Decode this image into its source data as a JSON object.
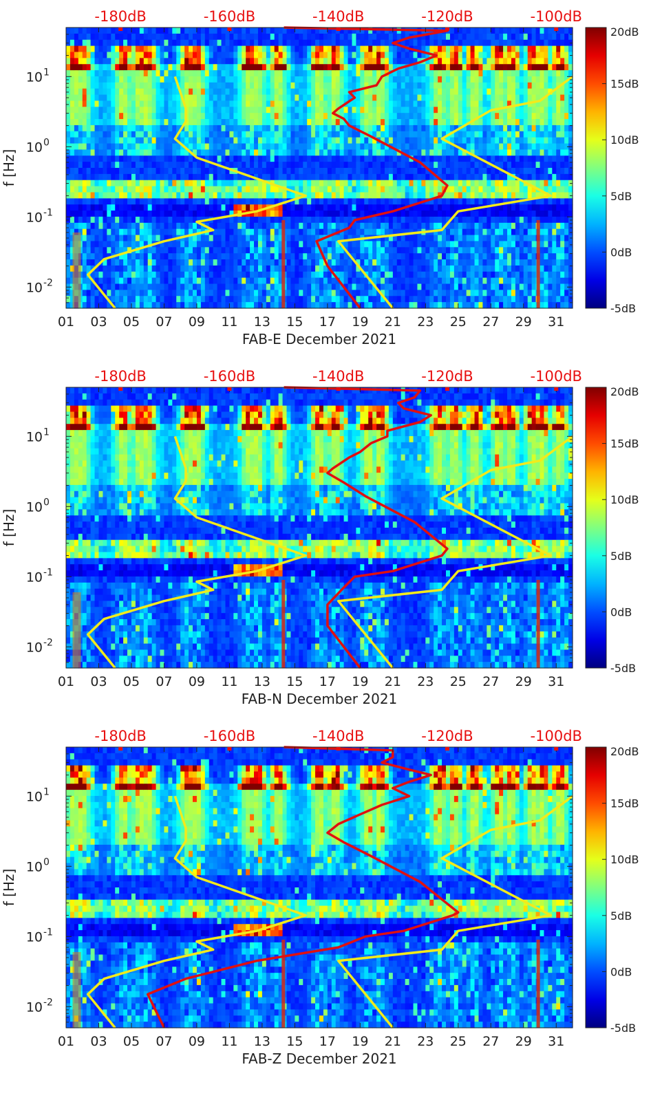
{
  "chart_data": [
    {
      "type": "heatmap",
      "station": "FAB-E",
      "xlabel": "FAB-E December 2021",
      "ylabel": "f [Hz]",
      "x_ticks": [
        "01",
        "03",
        "05",
        "07",
        "09",
        "11",
        "13",
        "15",
        "17",
        "19",
        "21",
        "23",
        "25",
        "27",
        "29",
        "31"
      ],
      "x_range_days": [
        1,
        32
      ],
      "y_scale": "log",
      "y_range_hz": [
        0.005,
        50
      ],
      "y_ticks": [
        {
          "value": 0.01,
          "base": "10",
          "exp": "-2"
        },
        {
          "value": 0.1,
          "base": "10",
          "exp": "-1"
        },
        {
          "value": 1,
          "base": "10",
          "exp": "0"
        },
        {
          "value": 10,
          "base": "10",
          "exp": "1"
        }
      ],
      "top_axis_labels": [
        "-180dB",
        "-160dB",
        "-140dB",
        "-120dB",
        "-100dB"
      ],
      "top_axis_db": [
        -180,
        -160,
        -140,
        -120,
        -100
      ],
      "top_axis_range_db": [
        -190,
        -97
      ],
      "colorbar": {
        "labels": [
          "20dB",
          "15dB",
          "10dB",
          "5dB",
          "0dB",
          "-5dB"
        ],
        "values": [
          20,
          15,
          10,
          5,
          0,
          -5
        ],
        "range": [
          -5,
          20
        ],
        "colormap": "jet"
      },
      "noise_model_curves": {
        "color": "#f2ea1c",
        "low_model": [
          [
            -181,
            0.005
          ],
          [
            -186,
            0.015
          ],
          [
            -183,
            0.025
          ],
          [
            -172,
            0.045
          ],
          [
            -163,
            0.065
          ],
          [
            -166,
            0.085
          ],
          [
            -155,
            0.12
          ],
          [
            -146,
            0.2
          ],
          [
            -166,
            0.7
          ],
          [
            -170,
            1.3
          ],
          [
            -168,
            2.3
          ],
          [
            -168,
            3.5
          ],
          [
            -170,
            10
          ]
        ],
        "high_model": [
          [
            -130,
            0.005
          ],
          [
            -140,
            0.045
          ],
          [
            -121,
            0.065
          ],
          [
            -118,
            0.12
          ],
          [
            -101,
            0.2
          ],
          [
            -121,
            1.3
          ],
          [
            -112,
            3.3
          ],
          [
            -103,
            4.5
          ],
          [
            -97,
            10
          ]
        ]
      },
      "spectrum_curve": {
        "color": "#e01010",
        "points": [
          [
            -136,
            0.005
          ],
          [
            -142,
            0.02
          ],
          [
            -144,
            0.045
          ],
          [
            -138,
            0.07
          ],
          [
            -137,
            0.09
          ],
          [
            -130,
            0.12
          ],
          [
            -121,
            0.2
          ],
          [
            -120,
            0.28
          ],
          [
            -125,
            0.6
          ],
          [
            -134,
            1.4
          ],
          [
            -138,
            2.0
          ],
          [
            -139,
            2.5
          ],
          [
            -141,
            3.0
          ],
          [
            -140,
            3.5
          ],
          [
            -137,
            5.0
          ],
          [
            -138,
            6.0
          ],
          [
            -133,
            7.5
          ],
          [
            -132,
            10.0
          ],
          [
            -129,
            13.0
          ],
          [
            -125,
            16.0
          ],
          [
            -122,
            20.0
          ],
          [
            -127,
            25.0
          ],
          [
            -130,
            30.0
          ],
          [
            -127,
            36.0
          ],
          [
            -120,
            45.0
          ],
          [
            -150,
            50.0
          ]
        ]
      }
    },
    {
      "type": "heatmap",
      "station": "FAB-N",
      "xlabel": "FAB-N December 2021",
      "ylabel": "f [Hz]",
      "x_ticks": [
        "01",
        "03",
        "05",
        "07",
        "09",
        "11",
        "13",
        "15",
        "17",
        "19",
        "21",
        "23",
        "25",
        "27",
        "29",
        "31"
      ],
      "x_range_days": [
        1,
        32
      ],
      "y_scale": "log",
      "y_range_hz": [
        0.005,
        50
      ],
      "y_ticks": [
        {
          "value": 0.01,
          "base": "10",
          "exp": "-2"
        },
        {
          "value": 0.1,
          "base": "10",
          "exp": "-1"
        },
        {
          "value": 1,
          "base": "10",
          "exp": "0"
        },
        {
          "value": 10,
          "base": "10",
          "exp": "1"
        }
      ],
      "top_axis_labels": [
        "-180dB",
        "-160dB",
        "-140dB",
        "-120dB",
        "-100dB"
      ],
      "top_axis_db": [
        -180,
        -160,
        -140,
        -120,
        -100
      ],
      "top_axis_range_db": [
        -190,
        -97
      ],
      "colorbar": {
        "labels": [
          "20dB",
          "15dB",
          "10dB",
          "5dB",
          "0dB",
          "-5dB"
        ],
        "values": [
          20,
          15,
          10,
          5,
          0,
          -5
        ],
        "range": [
          -5,
          20
        ],
        "colormap": "jet"
      },
      "noise_model_curves": {
        "color": "#f2ea1c",
        "low_model": [
          [
            -181,
            0.005
          ],
          [
            -186,
            0.015
          ],
          [
            -183,
            0.025
          ],
          [
            -172,
            0.045
          ],
          [
            -163,
            0.065
          ],
          [
            -166,
            0.085
          ],
          [
            -155,
            0.12
          ],
          [
            -146,
            0.2
          ],
          [
            -166,
            0.7
          ],
          [
            -170,
            1.3
          ],
          [
            -168,
            2.3
          ],
          [
            -168,
            3.5
          ],
          [
            -170,
            10
          ]
        ],
        "high_model": [
          [
            -130,
            0.005
          ],
          [
            -140,
            0.045
          ],
          [
            -121,
            0.065
          ],
          [
            -118,
            0.12
          ],
          [
            -101,
            0.2
          ],
          [
            -121,
            1.3
          ],
          [
            -112,
            3.3
          ],
          [
            -103,
            4.5
          ],
          [
            -97,
            10
          ]
        ]
      },
      "spectrum_curve": {
        "color": "#e01010",
        "points": [
          [
            -136,
            0.005
          ],
          [
            -142,
            0.02
          ],
          [
            -142,
            0.04
          ],
          [
            -139,
            0.07
          ],
          [
            -137,
            0.1
          ],
          [
            -130,
            0.12
          ],
          [
            -121,
            0.2
          ],
          [
            -120,
            0.25
          ],
          [
            -126,
            0.6
          ],
          [
            -135,
            1.4
          ],
          [
            -139,
            2.2
          ],
          [
            -142,
            3.0
          ],
          [
            -141,
            3.5
          ],
          [
            -138,
            5.0
          ],
          [
            -136,
            6.0
          ],
          [
            -134,
            8.0
          ],
          [
            -131,
            10.0
          ],
          [
            -131,
            12.0
          ],
          [
            -125,
            16.0
          ],
          [
            -123,
            20.0
          ],
          [
            -128,
            25.0
          ],
          [
            -129,
            30.0
          ],
          [
            -126,
            36.0
          ],
          [
            -125,
            45.0
          ],
          [
            -150,
            50.0
          ]
        ]
      }
    },
    {
      "type": "heatmap",
      "station": "FAB-Z",
      "xlabel": "FAB-Z December 2021",
      "ylabel": "f [Hz]",
      "x_ticks": [
        "01",
        "03",
        "05",
        "07",
        "09",
        "11",
        "13",
        "15",
        "17",
        "19",
        "21",
        "23",
        "25",
        "27",
        "29",
        "31"
      ],
      "x_range_days": [
        1,
        32
      ],
      "y_scale": "log",
      "y_range_hz": [
        0.005,
        50
      ],
      "y_ticks": [
        {
          "value": 0.01,
          "base": "10",
          "exp": "-2"
        },
        {
          "value": 0.1,
          "base": "10",
          "exp": "-1"
        },
        {
          "value": 1,
          "base": "10",
          "exp": "0"
        },
        {
          "value": 10,
          "base": "10",
          "exp": "1"
        }
      ],
      "top_axis_labels": [
        "-180dB",
        "-160dB",
        "-140dB",
        "-120dB",
        "-100dB"
      ],
      "top_axis_db": [
        -180,
        -160,
        -140,
        -120,
        -100
      ],
      "top_axis_range_db": [
        -190,
        -97
      ],
      "colorbar": {
        "labels": [
          "20dB",
          "15dB",
          "10dB",
          "5dB",
          "0dB",
          "-5dB"
        ],
        "values": [
          20,
          15,
          10,
          5,
          0,
          -5
        ],
        "range": [
          -5,
          20
        ],
        "colormap": "jet"
      },
      "noise_model_curves": {
        "color": "#f2ea1c",
        "low_model": [
          [
            -181,
            0.005
          ],
          [
            -186,
            0.015
          ],
          [
            -183,
            0.025
          ],
          [
            -172,
            0.045
          ],
          [
            -163,
            0.065
          ],
          [
            -166,
            0.085
          ],
          [
            -155,
            0.12
          ],
          [
            -146,
            0.2
          ],
          [
            -166,
            0.7
          ],
          [
            -170,
            1.3
          ],
          [
            -168,
            2.3
          ],
          [
            -168,
            3.5
          ],
          [
            -170,
            10
          ]
        ],
        "high_model": [
          [
            -130,
            0.005
          ],
          [
            -140,
            0.045
          ],
          [
            -121,
            0.065
          ],
          [
            -118,
            0.12
          ],
          [
            -101,
            0.2
          ],
          [
            -121,
            1.3
          ],
          [
            -112,
            3.3
          ],
          [
            -103,
            4.5
          ],
          [
            -97,
            10
          ]
        ]
      },
      "spectrum_curve": {
        "color": "#e01010",
        "points": [
          [
            -172,
            0.005
          ],
          [
            -175,
            0.015
          ],
          [
            -168,
            0.025
          ],
          [
            -155,
            0.045
          ],
          [
            -140,
            0.07
          ],
          [
            -135,
            0.1
          ],
          [
            -128,
            0.12
          ],
          [
            -119,
            0.2
          ],
          [
            -118,
            0.22
          ],
          [
            -125,
            0.6
          ],
          [
            -134,
            1.4
          ],
          [
            -139,
            2.2
          ],
          [
            -142,
            3.0
          ],
          [
            -140,
            4.0
          ],
          [
            -136,
            5.5
          ],
          [
            -132,
            7.5
          ],
          [
            -127,
            10.0
          ],
          [
            -130,
            13.0
          ],
          [
            -127,
            16.0
          ],
          [
            -123,
            20.0
          ],
          [
            -128,
            25.0
          ],
          [
            -132,
            30.0
          ],
          [
            -130,
            36.0
          ],
          [
            -130,
            45.0
          ],
          [
            -150,
            50.0
          ]
        ]
      }
    }
  ]
}
